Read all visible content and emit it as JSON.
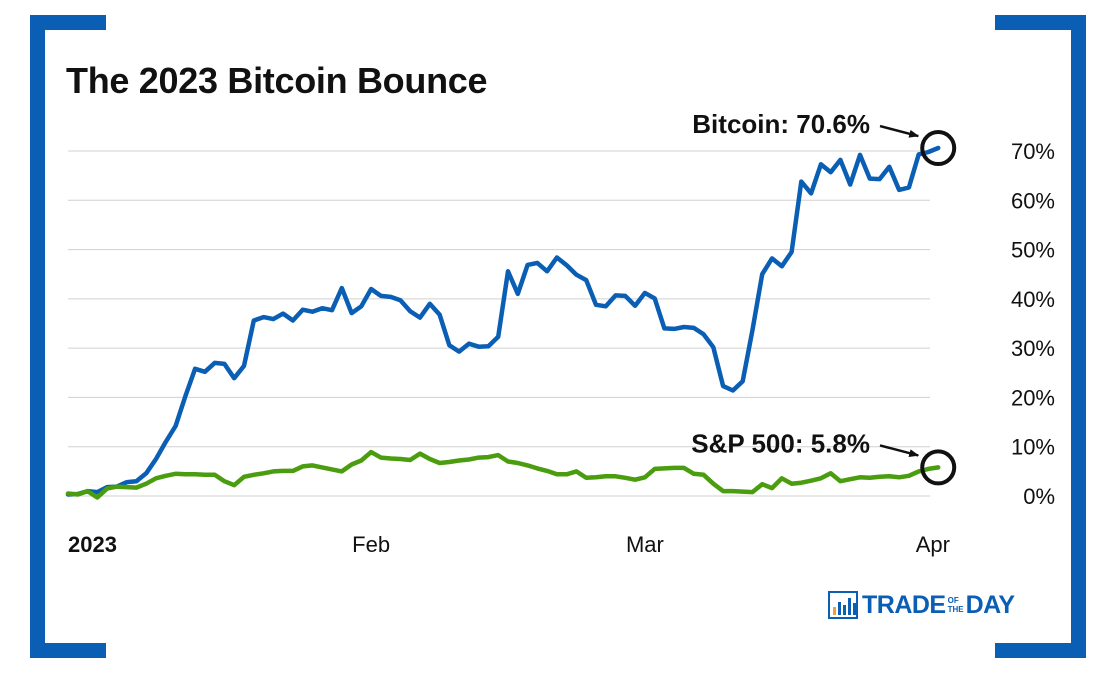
{
  "title": "The 2023 Bitcoin Bounce",
  "colors": {
    "frame": "#0a5fb4",
    "bitcoin": "#0a5fb4",
    "sp500": "#4a9d0f",
    "grid": "#d0d0d0",
    "text": "#111111"
  },
  "logo": {
    "part1": "TRADE",
    "small_top": "OF",
    "small_bottom": "THE",
    "part2": "DAY",
    "icon": "bar-chart-icon"
  },
  "chart_data": {
    "type": "line",
    "title": "The 2023 Bitcoin Bounce",
    "xlabel": "",
    "ylabel": "",
    "x_range": [
      0,
      90
    ],
    "ylim": [
      0,
      70
    ],
    "y_ticks": [
      {
        "value": 0,
        "label": "0%"
      },
      {
        "value": 10,
        "label": "10%"
      },
      {
        "value": 20,
        "label": "20%"
      },
      {
        "value": 30,
        "label": "30%"
      },
      {
        "value": 40,
        "label": "40%"
      },
      {
        "value": 50,
        "label": "50%"
      },
      {
        "value": 60,
        "label": "60%"
      },
      {
        "value": 70,
        "label": "70%"
      }
    ],
    "x_ticks": [
      {
        "value": 0,
        "label": "2023",
        "bold": true
      },
      {
        "value": 31,
        "label": "Feb",
        "bold": false
      },
      {
        "value": 59,
        "label": "Mar",
        "bold": false
      },
      {
        "value": 90,
        "label": "Apr",
        "bold": false
      }
    ],
    "grid": true,
    "series": [
      {
        "name": "Bitcoin",
        "color": "#0a5fb4",
        "points": [
          [
            0,
            0.3
          ],
          [
            1,
            0.4
          ],
          [
            2,
            1.0
          ],
          [
            3,
            0.8
          ],
          [
            4,
            1.8
          ],
          [
            5,
            1.9
          ],
          [
            6,
            2.8
          ],
          [
            7,
            3.0
          ],
          [
            8,
            4.6
          ],
          [
            9,
            7.5
          ],
          [
            10,
            11.0
          ],
          [
            11,
            14.2
          ],
          [
            12,
            20.2
          ],
          [
            13,
            25.8
          ],
          [
            14,
            25.2
          ],
          [
            15,
            27.0
          ],
          [
            16,
            26.8
          ],
          [
            17,
            23.9
          ],
          [
            18,
            26.4
          ],
          [
            19,
            35.6
          ],
          [
            20,
            36.3
          ],
          [
            21,
            35.9
          ],
          [
            22,
            37.0
          ],
          [
            23,
            35.6
          ],
          [
            24,
            37.8
          ],
          [
            25,
            37.4
          ],
          [
            26,
            38.1
          ],
          [
            27,
            37.7
          ],
          [
            28,
            42.2
          ],
          [
            29,
            37.1
          ],
          [
            30,
            38.5
          ],
          [
            31,
            42.0
          ],
          [
            32,
            40.6
          ],
          [
            33,
            40.4
          ],
          [
            34,
            39.7
          ],
          [
            35,
            37.5
          ],
          [
            36,
            36.2
          ],
          [
            37,
            39.0
          ],
          [
            38,
            36.8
          ],
          [
            39,
            30.6
          ],
          [
            40,
            29.3
          ],
          [
            41,
            30.9
          ],
          [
            42,
            30.3
          ],
          [
            43,
            30.4
          ],
          [
            44,
            32.3
          ],
          [
            45,
            45.6
          ],
          [
            46,
            41.0
          ],
          [
            47,
            46.9
          ],
          [
            48,
            47.3
          ],
          [
            49,
            45.6
          ],
          [
            50,
            48.4
          ],
          [
            51,
            46.8
          ],
          [
            52,
            44.9
          ],
          [
            53,
            43.8
          ],
          [
            54,
            38.8
          ],
          [
            55,
            38.5
          ],
          [
            56,
            40.7
          ],
          [
            57,
            40.6
          ],
          [
            58,
            38.6
          ],
          [
            59,
            41.2
          ],
          [
            60,
            40.1
          ],
          [
            61,
            34.0
          ],
          [
            62,
            33.9
          ],
          [
            63,
            34.3
          ],
          [
            64,
            34.1
          ],
          [
            65,
            32.8
          ],
          [
            66,
            30.2
          ],
          [
            67,
            22.3
          ],
          [
            68,
            21.4
          ],
          [
            69,
            23.3
          ],
          [
            70,
            33.6
          ],
          [
            71,
            45.0
          ],
          [
            72,
            48.2
          ],
          [
            73,
            46.6
          ],
          [
            74,
            49.5
          ],
          [
            75,
            63.8
          ],
          [
            76,
            61.4
          ],
          [
            77,
            67.3
          ],
          [
            78,
            65.7
          ],
          [
            79,
            68.2
          ],
          [
            80,
            63.2
          ],
          [
            81,
            69.2
          ],
          [
            82,
            64.4
          ],
          [
            83,
            64.3
          ],
          [
            84,
            66.8
          ],
          [
            85,
            62.1
          ],
          [
            86,
            62.6
          ],
          [
            87,
            69.3
          ],
          [
            88,
            69.8
          ],
          [
            89,
            70.6
          ]
        ],
        "annotation": "Bitcoin: 70.6%"
      },
      {
        "name": "S&P 500",
        "color": "#4a9d0f",
        "points": [
          [
            0,
            0.5
          ],
          [
            1,
            0.3
          ],
          [
            2,
            1.0
          ],
          [
            3,
            -0.3
          ],
          [
            4,
            1.5
          ],
          [
            5,
            1.9
          ],
          [
            6,
            1.8
          ],
          [
            7,
            1.7
          ],
          [
            8,
            2.5
          ],
          [
            9,
            3.6
          ],
          [
            10,
            4.1
          ],
          [
            11,
            4.5
          ],
          [
            12,
            4.4
          ],
          [
            13,
            4.4
          ],
          [
            14,
            4.3
          ],
          [
            15,
            4.3
          ],
          [
            16,
            3.0
          ],
          [
            17,
            2.2
          ],
          [
            18,
            3.9
          ],
          [
            19,
            4.3
          ],
          [
            20,
            4.6
          ],
          [
            21,
            5.0
          ],
          [
            22,
            5.1
          ],
          [
            23,
            5.1
          ],
          [
            24,
            6.0
          ],
          [
            25,
            6.2
          ],
          [
            26,
            5.8
          ],
          [
            27,
            5.4
          ],
          [
            28,
            5.0
          ],
          [
            29,
            6.4
          ],
          [
            30,
            7.2
          ],
          [
            31,
            8.9
          ],
          [
            32,
            7.8
          ],
          [
            33,
            7.6
          ],
          [
            34,
            7.5
          ],
          [
            35,
            7.3
          ],
          [
            36,
            8.6
          ],
          [
            37,
            7.5
          ],
          [
            38,
            6.7
          ],
          [
            39,
            6.9
          ],
          [
            40,
            7.2
          ],
          [
            41,
            7.4
          ],
          [
            42,
            7.8
          ],
          [
            43,
            7.9
          ],
          [
            44,
            8.3
          ],
          [
            45,
            7.0
          ],
          [
            46,
            6.7
          ],
          [
            47,
            6.2
          ],
          [
            48,
            5.6
          ],
          [
            49,
            5.1
          ],
          [
            50,
            4.4
          ],
          [
            51,
            4.4
          ],
          [
            52,
            5.0
          ],
          [
            53,
            3.7
          ],
          [
            54,
            3.8
          ],
          [
            55,
            4.0
          ],
          [
            56,
            4.0
          ],
          [
            57,
            3.7
          ],
          [
            58,
            3.3
          ],
          [
            59,
            3.8
          ],
          [
            60,
            5.5
          ],
          [
            61,
            5.6
          ],
          [
            62,
            5.7
          ],
          [
            63,
            5.7
          ],
          [
            64,
            4.5
          ],
          [
            65,
            4.3
          ],
          [
            66,
            2.5
          ],
          [
            67,
            1.0
          ],
          [
            68,
            1.0
          ],
          [
            69,
            0.9
          ],
          [
            70,
            0.8
          ],
          [
            71,
            2.4
          ],
          [
            72,
            1.6
          ],
          [
            73,
            3.6
          ],
          [
            74,
            2.5
          ],
          [
            75,
            2.7
          ],
          [
            76,
            3.1
          ],
          [
            77,
            3.6
          ],
          [
            78,
            4.6
          ],
          [
            79,
            3.0
          ],
          [
            80,
            3.4
          ],
          [
            81,
            3.8
          ],
          [
            82,
            3.7
          ],
          [
            83,
            3.9
          ],
          [
            84,
            4.0
          ],
          [
            85,
            3.8
          ],
          [
            86,
            4.1
          ],
          [
            87,
            5.0
          ],
          [
            88,
            5.5
          ],
          [
            89,
            5.8
          ]
        ],
        "annotation": "S&P 500: 5.8%"
      }
    ]
  }
}
